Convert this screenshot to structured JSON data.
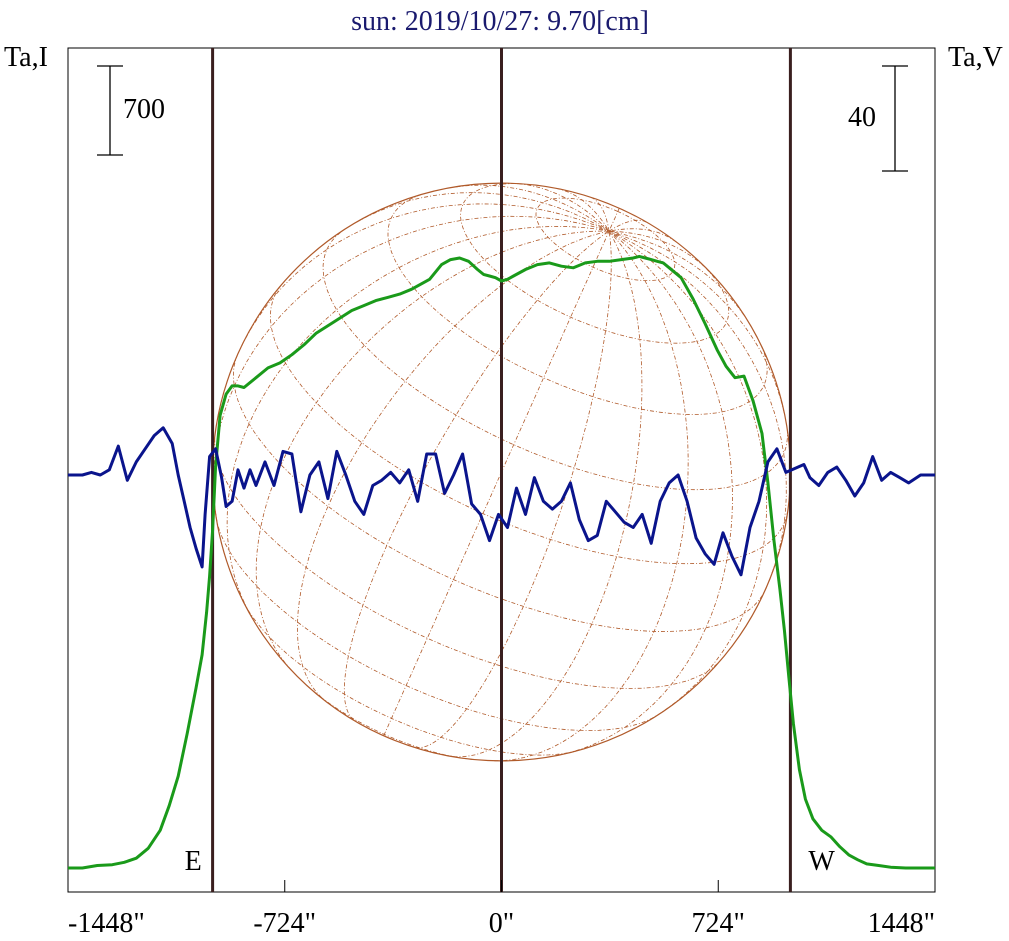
{
  "chart_data": {
    "type": "line",
    "title": "sun: 2019/10/27: 9.70[cm]",
    "left_axis_label": "Ta,I",
    "right_axis_label": "Ta,V",
    "left_scale_bar_label": "700",
    "right_scale_bar_label": "40",
    "xlim": [
      -1448,
      1448
    ],
    "x_ticks": [
      -1448,
      -724,
      0,
      724,
      1448
    ],
    "x_tick_labels": [
      "-1448\"",
      "-724\"",
      "0\"",
      "724\"",
      "1448\""
    ],
    "limb_markers": [
      {
        "x": -965,
        "label": "E"
      },
      {
        "x": 0,
        "label": ""
      },
      {
        "x": 965,
        "label": "W"
      }
    ],
    "solar_disk": {
      "radius": 965,
      "grid": true
    },
    "series": [
      {
        "key": "intensity",
        "color": "#1a9a1a",
        "x": [
          -1448,
          -1400,
          -1350,
          -1300,
          -1260,
          -1220,
          -1180,
          -1140,
          -1110,
          -1080,
          -1050,
          -1020,
          -1000,
          -985,
          -975,
          -965,
          -955,
          -940,
          -920,
          -900,
          -880,
          -860,
          -820,
          -780,
          -740,
          -700,
          -660,
          -620,
          -560,
          -500,
          -460,
          -420,
          -380,
          -340,
          -300,
          -240,
          -200,
          -170,
          -140,
          -110,
          -80,
          -60,
          -40,
          -20,
          0,
          20,
          40,
          80,
          120,
          160,
          200,
          240,
          280,
          320,
          360,
          400,
          440,
          460,
          480,
          500,
          520,
          540,
          560,
          600,
          640,
          680,
          720,
          750,
          780,
          810,
          840,
          870,
          890,
          910,
          930,
          945,
          960,
          975,
          995,
          1015,
          1040,
          1070,
          1100,
          1130,
          1160,
          1190,
          1220,
          1260,
          1300,
          1350,
          1400,
          1448
        ],
        "y": [
          0,
          0,
          15,
          20,
          35,
          60,
          120,
          230,
          380,
          560,
          820,
          1100,
          1300,
          1560,
          1780,
          2060,
          2450,
          2760,
          2890,
          2940,
          2940,
          2930,
          2990,
          3050,
          3080,
          3130,
          3190,
          3260,
          3330,
          3400,
          3430,
          3460,
          3480,
          3500,
          3530,
          3590,
          3680,
          3710,
          3720,
          3700,
          3650,
          3620,
          3610,
          3600,
          3580,
          3590,
          3610,
          3650,
          3680,
          3690,
          3670,
          3660,
          3690,
          3700,
          3700,
          3710,
          3720,
          3730,
          3720,
          3710,
          3700,
          3690,
          3660,
          3600,
          3470,
          3320,
          3160,
          3060,
          2990,
          3000,
          2850,
          2650,
          2350,
          2000,
          1700,
          1450,
          1160,
          880,
          600,
          420,
          300,
          230,
          190,
          130,
          80,
          50,
          25,
          15,
          5,
          0,
          0,
          0
        ],
        "unit_note": ""
      },
      {
        "key": "polarization",
        "color": "#0a148c",
        "x": [
          -1448,
          -1400,
          -1370,
          -1340,
          -1310,
          -1280,
          -1250,
          -1220,
          -1190,
          -1160,
          -1130,
          -1100,
          -1080,
          -1060,
          -1040,
          -1020,
          -1000,
          -990,
          -975,
          -955,
          -935,
          -920,
          -900,
          -880,
          -860,
          -840,
          -820,
          -790,
          -760,
          -730,
          -700,
          -670,
          -640,
          -610,
          -580,
          -550,
          -520,
          -490,
          -460,
          -430,
          -400,
          -370,
          -340,
          -310,
          -280,
          -250,
          -220,
          -190,
          -160,
          -130,
          -100,
          -70,
          -40,
          -10,
          20,
          50,
          80,
          110,
          140,
          170,
          200,
          230,
          260,
          290,
          320,
          350,
          380,
          410,
          440,
          470,
          500,
          530,
          560,
          590,
          620,
          650,
          680,
          710,
          740,
          770,
          800,
          830,
          860,
          890,
          920,
          950,
          970,
          990,
          1010,
          1030,
          1060,
          1090,
          1120,
          1150,
          1180,
          1210,
          1240,
          1270,
          1300,
          1330,
          1360,
          1400,
          1448
        ],
        "y": [
          0,
          0,
          1,
          0,
          2,
          11,
          -2,
          5,
          10,
          15,
          18,
          12,
          0,
          -10,
          -20,
          -28,
          -35,
          -15,
          7,
          10,
          -1,
          -12,
          -10,
          2,
          -5,
          2,
          -4,
          5,
          -4,
          9,
          8,
          -14,
          0,
          5,
          -9,
          9,
          0,
          -10,
          -15,
          -4,
          -2,
          1,
          -3,
          2,
          -10,
          8,
          8,
          -7,
          0,
          8,
          -11,
          -15,
          -25,
          -15,
          -20,
          -5,
          -15,
          -1,
          -10,
          -13,
          -10,
          -3,
          -17,
          -25,
          -23,
          -10,
          -14,
          -18,
          -20,
          -15,
          -26,
          -10,
          -3,
          0,
          -10,
          -24,
          -30,
          -34,
          -22,
          -31,
          -38,
          -20,
          -10,
          5,
          10,
          1,
          2,
          3,
          4,
          -1,
          -4,
          1,
          3,
          -2,
          -8,
          -3,
          7,
          -2,
          1,
          -1,
          -3,
          0,
          0
        ],
        "unit_note": ""
      }
    ],
    "colors": {
      "title": "#1a1a6e",
      "limb_lines": "#3a1f1f",
      "disk": "#b05a2a",
      "intensity": "#1a9a1a",
      "polarization": "#0a148c"
    }
  }
}
